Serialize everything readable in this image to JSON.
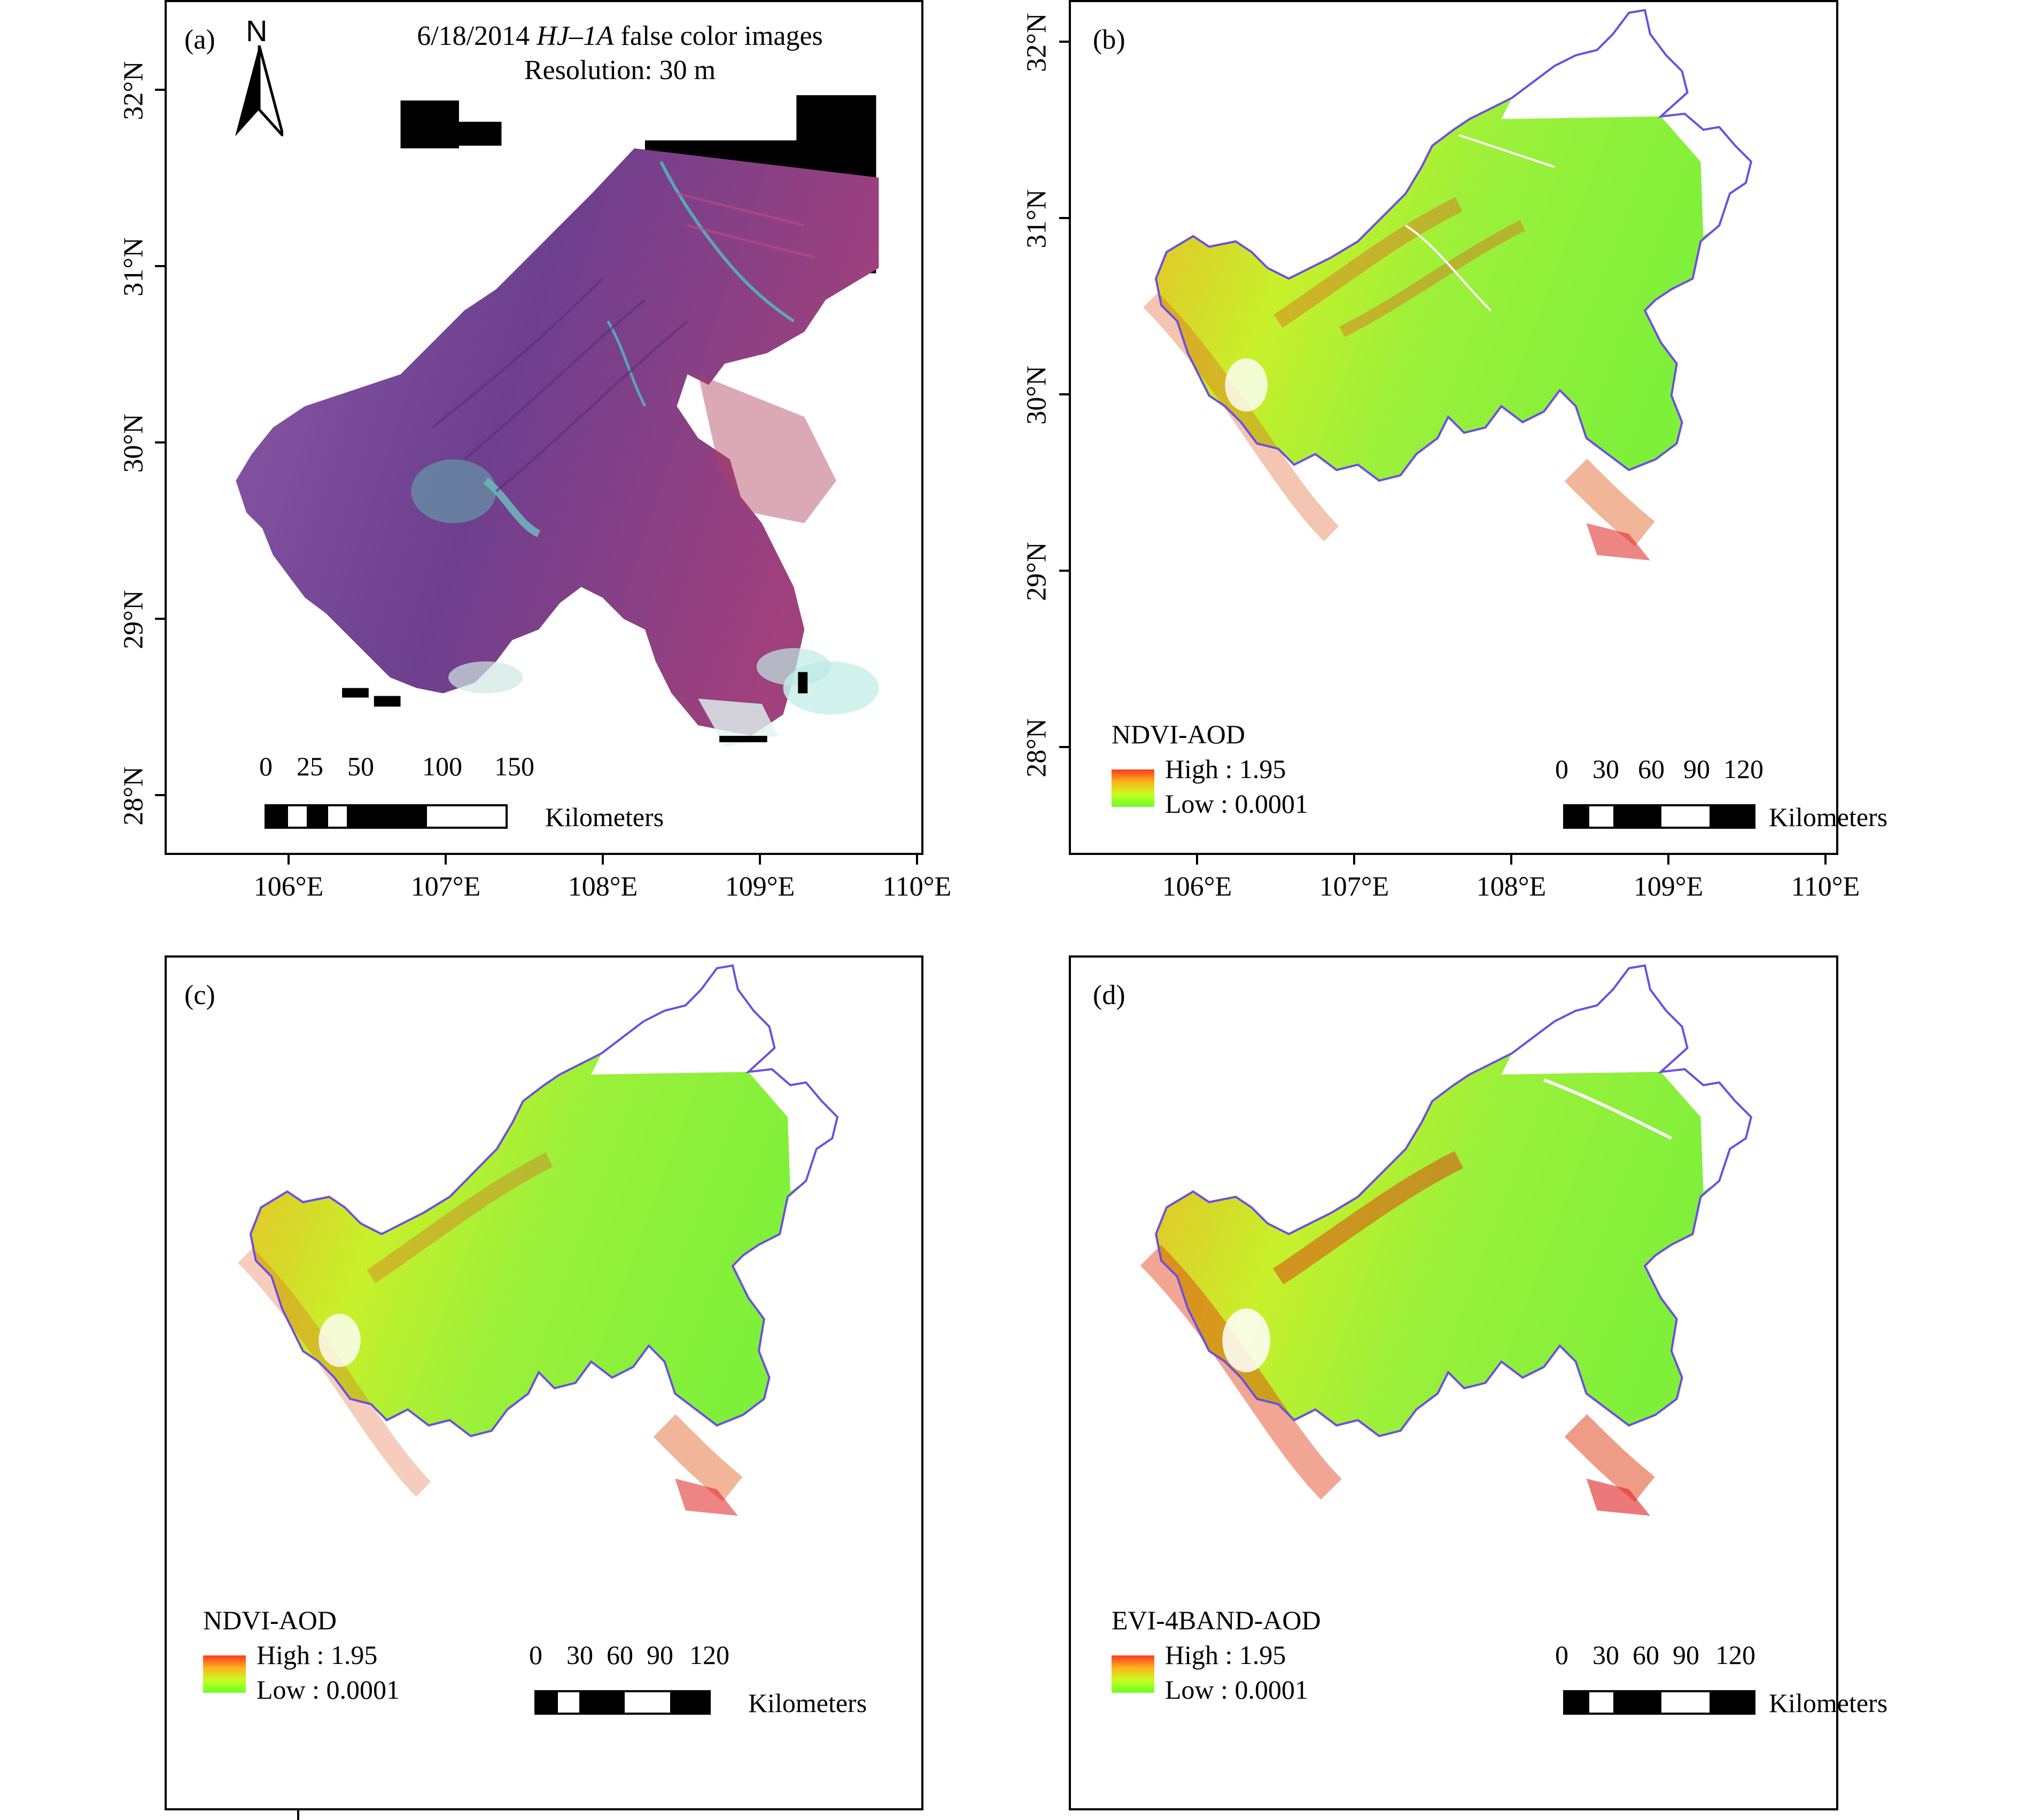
{
  "panels": [
    {
      "id": "a",
      "label": "(a)",
      "title_line1_prefix": "6/18/2014 ",
      "title_line1_italic": "HJ–1A",
      "title_line1_suffix": " false color images",
      "title_line2": "Resolution: 30 m",
      "north_label": "N",
      "scale_numbers": [
        "0",
        "25",
        "50",
        "100",
        "150"
      ],
      "scale_unit": "Kilometers"
    },
    {
      "id": "b",
      "label": "(b)",
      "legend_title": "NDVI-AOD",
      "legend_high": "High : 1.95",
      "legend_low": "Low : 0.0001",
      "scale_numbers": [
        "0",
        "30",
        "60",
        "90",
        "120"
      ],
      "scale_unit": "Kilometers"
    },
    {
      "id": "c",
      "label": "(c)",
      "legend_title": "NDVI-AOD",
      "legend_high": "High : 1.95",
      "legend_low": "Low : 0.0001",
      "scale_numbers": [
        "0",
        "30",
        "60",
        "90",
        "120"
      ],
      "scale_unit": "Kilometers"
    },
    {
      "id": "d",
      "label": "(d)",
      "legend_title": "EVI-4BAND-AOD",
      "legend_high": "High : 1.95",
      "legend_low": "Low : 0.0001",
      "scale_numbers": [
        "0",
        "30",
        "60",
        "90",
        "120"
      ],
      "scale_unit": "Kilometers"
    }
  ],
  "lon_labels": [
    "106°E",
    "107°E",
    "108°E",
    "109°E",
    "110°E"
  ],
  "lat_labels": [
    "32°N",
    "31°N",
    "30°N",
    "29°N",
    "28°N"
  ],
  "colors": {
    "boundary": "#6a4fe0",
    "false_color": "#8a3f9a",
    "index_high": "#ff3b1e",
    "index_low": "#6aff2a"
  }
}
